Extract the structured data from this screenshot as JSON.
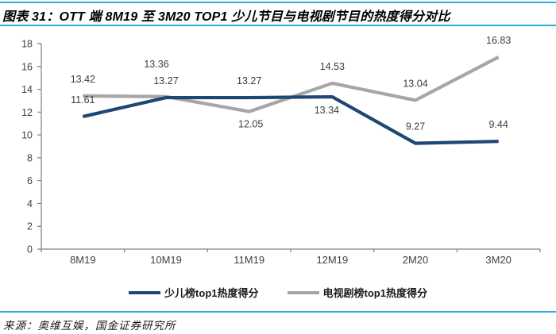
{
  "header": {
    "title": "图表 31：OTT 端 8M19 至 3M20 TOP1 少儿节目与电视剧节目的热度得分对比"
  },
  "footer": {
    "source": "来源：奥维互娱，国金证券研究所"
  },
  "accent_colors": {
    "rule_blue": "#2EACE3",
    "series_blue": "#1F4773",
    "series_gray": "#A6A6A6",
    "axis_gray": "#808080"
  },
  "chart_data": {
    "type": "line",
    "title": "OTT 端 8M19 至 3M20 TOP1 少儿节目与电视剧节目的热度得分对比",
    "categories": [
      "8M19",
      "10M19",
      "11M19",
      "12M19",
      "2M20",
      "3M20"
    ],
    "series": [
      {
        "name": "少儿榜top1热度得分",
        "color": "#1F4773",
        "values": [
          11.61,
          13.27,
          13.27,
          13.34,
          9.27,
          9.44
        ]
      },
      {
        "name": "电视剧榜top1热度得分",
        "color": "#A6A6A6",
        "values": [
          13.42,
          13.36,
          12.05,
          14.53,
          13.04,
          16.83
        ]
      }
    ],
    "xlabel": "",
    "ylabel": "",
    "ylim": [
      0,
      18
    ],
    "ytick_step": 2,
    "grid": false,
    "data_labels": true,
    "legend_position": "bottom"
  }
}
